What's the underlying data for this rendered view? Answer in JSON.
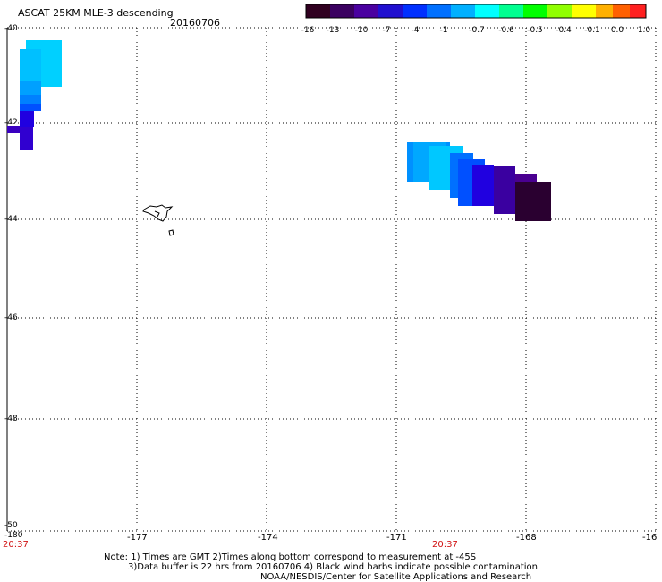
{
  "header": {
    "title": "ASCAT 25KM MLE-3 descending",
    "date": "20160706"
  },
  "colorbar": {
    "labels": [
      "-16",
      "-13",
      "-10",
      "-7",
      "-4",
      "-1",
      "-0.7",
      "-0.6",
      "-0.5",
      "-0.4",
      "-0.1",
      "0.0",
      "1.0"
    ],
    "colors": [
      "#300020",
      "#3a0060",
      "#4a00a0",
      "#2010d0",
      "#0030ff",
      "#0070ff",
      "#00b0ff",
      "#00ffff",
      "#00ff90",
      "#00ff00",
      "#90ff00",
      "#ffff00",
      "#ffb000",
      "#ff6000",
      "#ff2020"
    ]
  },
  "map": {
    "lon_labels": [
      "-180",
      "-177",
      "-174",
      "-171",
      "-168",
      "-16"
    ],
    "lat_labels": [
      "-40",
      "-42",
      "-44",
      "-46",
      "-48",
      "-50"
    ],
    "time_labels": [
      "20:37",
      "20:37"
    ],
    "grid": "dotted",
    "swath_colors": {
      "light_cyan": "#00d0ff",
      "cyan_blue": "#00b0ff",
      "blue": "#0080ff",
      "mid_blue": "#0050ff",
      "deep_blue": "#2000e0",
      "violet": "#3a00a0",
      "purple": "#4a0090",
      "dark": "#2a0030"
    }
  },
  "notes": {
    "line1": "Note: 1) Times are GMT 2)Times along bottom correspond to measurement at -45S",
    "line2": "3)Data buffer is 22 hrs from 20160706 4) Black wind barbs indicate possible contamination",
    "line3": "NOAA/NESDIS/Center for Satellite Applications and Research"
  }
}
